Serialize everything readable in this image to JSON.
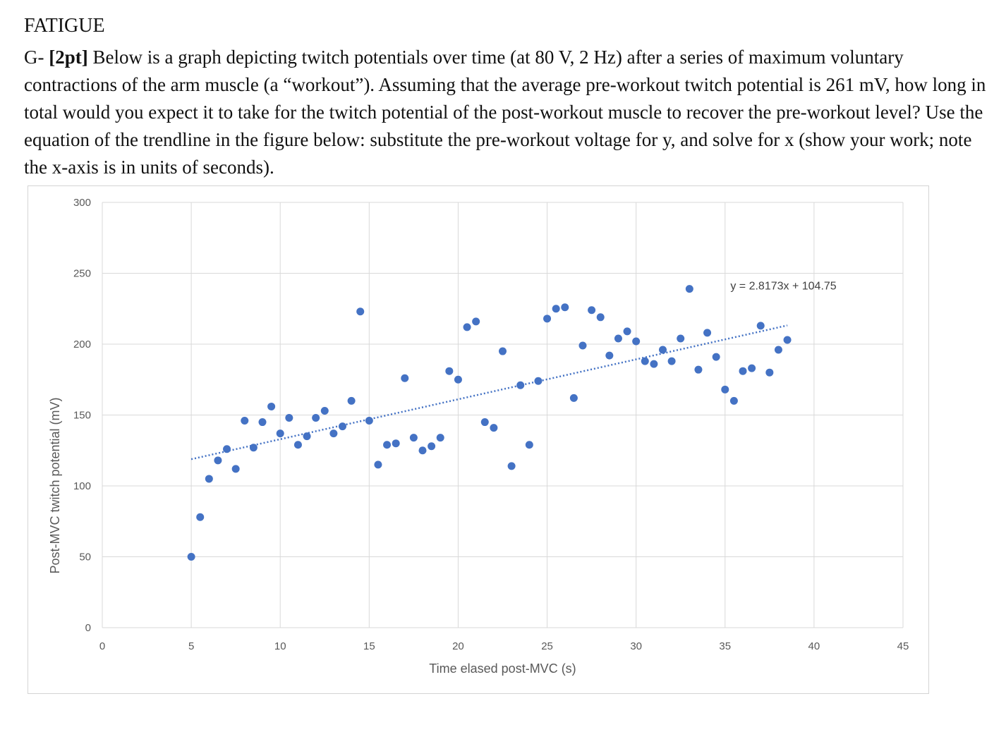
{
  "heading": "FATIGUE",
  "question": {
    "prefix": "G- ",
    "points": "[2pt]",
    "body": " Below is a graph depicting twitch potentials over time (at 80 V, 2 Hz) after a series of maximum voluntary contractions of the arm muscle (a “workout”). Assuming that the average pre-workout twitch potential is 261 mV, how long in total would you expect it to take for the twitch potential of the post-workout muscle to recover the pre-workout level? Use the equation of the trendline in the figure below: substitute the pre-workout voltage for y, and solve for x (show your work; note the x-axis is in units of seconds)."
  },
  "chart_data": {
    "type": "scatter",
    "title": "",
    "xlabel": "Time elased post-MVC (s)",
    "ylabel": "Post-MVC twitch potential (mV)",
    "xlim": [
      0,
      45
    ],
    "ylim": [
      0,
      300
    ],
    "x_ticks": [
      0,
      5,
      10,
      15,
      20,
      25,
      30,
      35,
      40,
      45
    ],
    "y_ticks": [
      0,
      50,
      100,
      150,
      200,
      250,
      300
    ],
    "grid": true,
    "marker_color": "#4472c4",
    "trendline": {
      "label": "y = 2.8173x + 104.75",
      "slope": 2.8173,
      "intercept": 104.75,
      "x_range": [
        5,
        38.5
      ],
      "style": "dotted",
      "color": "#4472c4"
    },
    "series": [
      {
        "points": [
          [
            5,
            50
          ],
          [
            5.5,
            78
          ],
          [
            6,
            105
          ],
          [
            6.5,
            118
          ],
          [
            7,
            126
          ],
          [
            7.5,
            112
          ],
          [
            8,
            146
          ],
          [
            8.5,
            127
          ],
          [
            9,
            145
          ],
          [
            9.5,
            156
          ],
          [
            10,
            137
          ],
          [
            10.5,
            148
          ],
          [
            11,
            129
          ],
          [
            11.5,
            135
          ],
          [
            12,
            148
          ],
          [
            12.5,
            153
          ],
          [
            13,
            137
          ],
          [
            13.5,
            142
          ],
          [
            14,
            160
          ],
          [
            14.5,
            223
          ],
          [
            15,
            146
          ],
          [
            15.5,
            115
          ],
          [
            16,
            129
          ],
          [
            16.5,
            130
          ],
          [
            17,
            176
          ],
          [
            17.5,
            134
          ],
          [
            18,
            125
          ],
          [
            18.5,
            128
          ],
          [
            19,
            134
          ],
          [
            19.5,
            181
          ],
          [
            20,
            175
          ],
          [
            20.5,
            212
          ],
          [
            21,
            216
          ],
          [
            21.5,
            145
          ],
          [
            22,
            141
          ],
          [
            22.5,
            195
          ],
          [
            23,
            114
          ],
          [
            23.5,
            171
          ],
          [
            24,
            129
          ],
          [
            24.5,
            174
          ],
          [
            25,
            218
          ],
          [
            25.5,
            225
          ],
          [
            26,
            226
          ],
          [
            26.5,
            162
          ],
          [
            27,
            199
          ],
          [
            27.5,
            224
          ],
          [
            28,
            219
          ],
          [
            28.5,
            192
          ],
          [
            29,
            204
          ],
          [
            29.5,
            209
          ],
          [
            30,
            202
          ],
          [
            30.5,
            188
          ],
          [
            31,
            186
          ],
          [
            31.5,
            196
          ],
          [
            32,
            188
          ],
          [
            32.5,
            204
          ],
          [
            33,
            239
          ],
          [
            33.5,
            182
          ],
          [
            34,
            208
          ],
          [
            34.5,
            191
          ],
          [
            35,
            168
          ],
          [
            35.5,
            160
          ],
          [
            36,
            181
          ],
          [
            36.5,
            183
          ],
          [
            37,
            213
          ],
          [
            37.5,
            180
          ],
          [
            38,
            196
          ],
          [
            38.5,
            203
          ]
        ]
      }
    ]
  }
}
